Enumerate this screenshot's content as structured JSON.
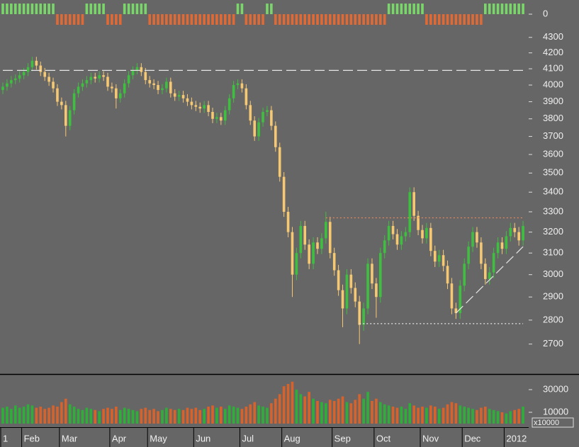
{
  "chart_data": [
    {
      "type": "bar",
      "positive_color": "#7ad66a",
      "negative_color": "#e06a36",
      "ylim": [
        -1.2,
        1.2
      ],
      "yticks": [
        0
      ],
      "values": [
        1,
        1,
        1,
        1,
        1,
        1,
        1,
        1,
        1,
        1,
        1,
        1,
        1,
        -1,
        -1,
        -1,
        -1,
        -1,
        -1,
        -1,
        1,
        1,
        1,
        1,
        1,
        -1,
        -1,
        -1,
        -1,
        1,
        1,
        1,
        1,
        1,
        1,
        -1,
        -1,
        -1,
        -1,
        -1,
        -1,
        -1,
        -1,
        -1,
        -1,
        -1,
        -1,
        -1,
        -1,
        -1,
        -1,
        -1,
        -1,
        -1,
        -1,
        -1,
        1,
        1,
        -1,
        -1,
        -1,
        -1,
        -1,
        1,
        1,
        -1,
        -1,
        -1,
        -1,
        -1,
        -1,
        -1,
        -1,
        -1,
        -1,
        -1,
        -1,
        -1,
        -1,
        -1,
        -1,
        -1,
        -1,
        -1,
        -1,
        -1,
        -1,
        -1,
        -1,
        -1,
        -1,
        -1,
        1,
        1,
        1,
        1,
        1,
        1,
        1,
        1,
        1,
        -1,
        -1,
        -1,
        -1,
        -1,
        -1,
        -1,
        -1,
        -1,
        -1,
        -1,
        -1,
        -1,
        -1,
        1,
        1,
        1,
        1,
        1,
        1,
        1,
        1,
        1,
        1
      ]
    },
    {
      "type": "candlestick",
      "up_color": "#3fbf3f",
      "down_color": "#f7c872",
      "log_scale": true,
      "ylim": [
        2580,
        4350
      ],
      "yticks": [
        2700,
        2800,
        2900,
        3000,
        3100,
        3200,
        3300,
        3400,
        3500,
        3600,
        3700,
        3800,
        3900,
        4000,
        4100,
        4200,
        4300
      ],
      "open": [
        3970,
        3990,
        4010,
        4030,
        4040,
        4060,
        4080,
        4110,
        4150,
        4120,
        4080,
        4050,
        4020,
        3980,
        3900,
        3880,
        3760,
        3850,
        3950,
        3990,
        4010,
        4030,
        4050,
        4040,
        4060,
        4050,
        3990,
        3980,
        3920,
        3950,
        4010,
        4060,
        4090,
        4110,
        4080,
        4030,
        4010,
        4000,
        3970,
        3980,
        4020,
        3950,
        3930,
        3940,
        3920,
        3900,
        3880,
        3870,
        3860,
        3880,
        3840,
        3800,
        3810,
        3790,
        3850,
        3920,
        4000,
        4010,
        3980,
        3880,
        3790,
        3700,
        3780,
        3840,
        3850,
        3760,
        3640,
        3480,
        3300,
        3200,
        3000,
        3100,
        3230,
        3140,
        3050,
        3150,
        3120,
        3170,
        3250,
        3100,
        3020,
        2930,
        2850,
        3000,
        2940,
        2880,
        2780,
        2850,
        3050,
        2960,
        2900,
        3100,
        3160,
        3230,
        3190,
        3140,
        3180,
        3200,
        3400,
        3280,
        3210,
        3170,
        3220,
        3110,
        3060,
        3090,
        3040,
        2960,
        2850,
        2830,
        2950,
        3050,
        3130,
        3200,
        3150,
        3050,
        2980,
        3010,
        3100,
        3150,
        3120,
        3180,
        3220,
        3200,
        3160
      ],
      "high": [
        4015,
        4035,
        4055,
        4065,
        4085,
        4105,
        4135,
        4175,
        4175,
        4145,
        4105,
        4075,
        4045,
        4005,
        3925,
        3905,
        3875,
        3975,
        4015,
        4035,
        4055,
        4075,
        4075,
        4085,
        4085,
        4075,
        4015,
        4005,
        3975,
        4035,
        4085,
        4115,
        4135,
        4135,
        4105,
        4055,
        4035,
        4025,
        4005,
        4045,
        4045,
        3975,
        3965,
        3965,
        3945,
        3925,
        3905,
        3895,
        3905,
        3905,
        3865,
        3835,
        3835,
        3875,
        3945,
        4025,
        4035,
        4035,
        4005,
        3905,
        3815,
        3805,
        3865,
        3875,
        3875,
        3785,
        3665,
        3505,
        3325,
        3225,
        3125,
        3255,
        3255,
        3165,
        3175,
        3175,
        3195,
        3300,
        3275,
        3125,
        3045,
        2955,
        3025,
        3025,
        2965,
        2905,
        2875,
        3075,
        3075,
        2985,
        3125,
        3185,
        3255,
        3255,
        3215,
        3205,
        3225,
        3425,
        3425,
        3305,
        3235,
        3245,
        3245,
        3135,
        3115,
        3115,
        3065,
        2985,
        2875,
        2975,
        3075,
        3155,
        3225,
        3225,
        3175,
        3075,
        3035,
        3125,
        3175,
        3175,
        3205,
        3245,
        3245,
        3225,
        3255
      ],
      "low": [
        3945,
        3965,
        3985,
        4005,
        4015,
        4035,
        4055,
        4085,
        4095,
        4055,
        4025,
        3995,
        3955,
        3875,
        3855,
        3700,
        3735,
        3825,
        3925,
        3965,
        3985,
        4005,
        4015,
        4015,
        4025,
        3965,
        3955,
        3860,
        3895,
        3925,
        3985,
        4035,
        4065,
        4055,
        4005,
        3985,
        3975,
        3945,
        3945,
        3955,
        3925,
        3905,
        3905,
        3895,
        3875,
        3855,
        3845,
        3835,
        3835,
        3815,
        3775,
        3775,
        3765,
        3765,
        3825,
        3895,
        3975,
        3955,
        3855,
        3765,
        3675,
        3675,
        3755,
        3815,
        3735,
        3615,
        3455,
        3275,
        3175,
        2900,
        2975,
        3075,
        3115,
        3025,
        3025,
        3095,
        3095,
        3145,
        3075,
        2995,
        2905,
        2770,
        2825,
        2915,
        2855,
        2700,
        2755,
        2825,
        2935,
        2810,
        2875,
        3075,
        3135,
        3165,
        3115,
        3115,
        3155,
        3175,
        3255,
        3185,
        3145,
        3145,
        3085,
        3035,
        3035,
        3015,
        2935,
        2825,
        2805,
        2805,
        2925,
        3025,
        3105,
        3125,
        3025,
        2955,
        2955,
        2985,
        3075,
        3095,
        3095,
        3155,
        3175,
        3135,
        3135
      ],
      "close": [
        3990,
        4010,
        4030,
        4040,
        4060,
        4080,
        4110,
        4150,
        4120,
        4080,
        4050,
        4020,
        3980,
        3900,
        3880,
        3760,
        3850,
        3950,
        3990,
        4010,
        4030,
        4050,
        4040,
        4060,
        4050,
        3990,
        3980,
        3920,
        3950,
        4010,
        4060,
        4090,
        4110,
        4080,
        4030,
        4010,
        4000,
        3970,
        3980,
        4020,
        3950,
        3930,
        3940,
        3920,
        3900,
        3880,
        3870,
        3860,
        3880,
        3840,
        3800,
        3810,
        3790,
        3850,
        3920,
        4000,
        4010,
        3980,
        3880,
        3790,
        3700,
        3780,
        3840,
        3850,
        3760,
        3640,
        3480,
        3300,
        3200,
        3000,
        3100,
        3230,
        3140,
        3050,
        3150,
        3120,
        3170,
        3250,
        3100,
        3020,
        2930,
        2850,
        3000,
        2940,
        2880,
        2780,
        2850,
        3050,
        2960,
        2900,
        3100,
        3160,
        3230,
        3190,
        3140,
        3180,
        3200,
        3400,
        3280,
        3210,
        3170,
        3220,
        3110,
        3060,
        3090,
        3040,
        2960,
        2850,
        2830,
        2950,
        3050,
        3130,
        3200,
        3150,
        3050,
        2980,
        3010,
        3100,
        3150,
        3120,
        3180,
        3220,
        3200,
        3160,
        3230
      ],
      "lines": [
        {
          "x": [
            0,
            124
          ],
          "y": [
            4090,
            4090
          ],
          "color": "#e6e6e6",
          "style": "dashed"
        },
        {
          "x": [
            77,
            124
          ],
          "y": [
            3270,
            3270
          ],
          "color": "#e8865a",
          "style": "dotted"
        },
        {
          "x": [
            85,
            124
          ],
          "y": [
            2785,
            2785
          ],
          "color": "#e6e6e6",
          "style": "dotted"
        },
        {
          "x": [
            108,
            124
          ],
          "y": [
            2830,
            3130
          ],
          "color": "#e6e6e6",
          "style": "dashed"
        }
      ]
    },
    {
      "type": "bar",
      "up_color": "#2fae3a",
      "down_color": "#d9622b",
      "ylim": [
        0,
        42500
      ],
      "yticks": [
        10000,
        30000
      ],
      "unit_label": "x10000",
      "categories": [
        "1",
        null,
        null,
        null,
        null,
        "Feb",
        null,
        null,
        null,
        null,
        null,
        null,
        null,
        null,
        "Mar",
        null,
        null,
        null,
        null,
        null,
        null,
        null,
        null,
        null,
        null,
        null,
        "Apr",
        null,
        null,
        null,
        null,
        null,
        null,
        null,
        null,
        "May",
        null,
        null,
        null,
        null,
        null,
        null,
        null,
        null,
        null,
        null,
        "Jun",
        null,
        null,
        null,
        null,
        null,
        null,
        null,
        null,
        null,
        null,
        "Jul",
        null,
        null,
        null,
        null,
        null,
        null,
        null,
        null,
        null,
        "Aug",
        null,
        null,
        null,
        null,
        null,
        null,
        null,
        null,
        null,
        null,
        null,
        "Sep",
        null,
        null,
        null,
        null,
        null,
        null,
        null,
        null,
        null,
        "Oct",
        null,
        null,
        null,
        null,
        null,
        null,
        null,
        null,
        null,
        null,
        "Nov",
        null,
        null,
        null,
        null,
        null,
        null,
        null,
        null,
        null,
        "Dec",
        null,
        null,
        null,
        null,
        null,
        null,
        null,
        null,
        null,
        "2012",
        null,
        null,
        null,
        null
      ],
      "values": [
        14000,
        15000,
        13000,
        16000,
        14000,
        15000,
        17000,
        16000,
        14000,
        15000,
        13000,
        14000,
        16000,
        15000,
        19000,
        22000,
        17000,
        15000,
        13000,
        12000,
        14000,
        13000,
        12000,
        11000,
        13000,
        14000,
        13000,
        15000,
        12000,
        14000,
        13000,
        12000,
        11000,
        13000,
        14000,
        12000,
        13000,
        11000,
        12000,
        14000,
        13000,
        12000,
        13000,
        12000,
        14000,
        13000,
        14000,
        12000,
        13000,
        15000,
        16000,
        14000,
        15000,
        13000,
        16000,
        15000,
        14000,
        13000,
        15000,
        17000,
        19000,
        16000,
        15000,
        14000,
        18000,
        22000,
        26000,
        33000,
        35000,
        37000,
        30000,
        26000,
        24000,
        28000,
        22000,
        20000,
        19000,
        18000,
        21000,
        20000,
        22000,
        24000,
        19000,
        18000,
        21000,
        26000,
        22000,
        28000,
        20000,
        22000,
        19000,
        17000,
        16000,
        15000,
        14000,
        15000,
        13000,
        18000,
        16000,
        14000,
        15000,
        14000,
        16000,
        15000,
        13000,
        14000,
        17000,
        19000,
        18000,
        16000,
        15000,
        14000,
        13000,
        12000,
        14000,
        15000,
        13000,
        12000,
        11000,
        10000,
        9000,
        11000,
        12000,
        13000,
        15000
      ]
    }
  ]
}
